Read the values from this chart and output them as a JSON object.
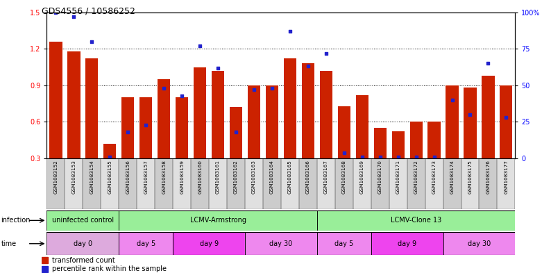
{
  "title": "GDS4556 / 10586252",
  "samples": [
    "GSM1083152",
    "GSM1083153",
    "GSM1083154",
    "GSM1083155",
    "GSM1083156",
    "GSM1083157",
    "GSM1083158",
    "GSM1083159",
    "GSM1083160",
    "GSM1083161",
    "GSM1083162",
    "GSM1083163",
    "GSM1083164",
    "GSM1083165",
    "GSM1083166",
    "GSM1083167",
    "GSM1083168",
    "GSM1083169",
    "GSM1083170",
    "GSM1083171",
    "GSM1083172",
    "GSM1083173",
    "GSM1083174",
    "GSM1083175",
    "GSM1083176",
    "GSM1083177"
  ],
  "red_values": [
    1.26,
    1.18,
    1.12,
    0.42,
    0.8,
    0.8,
    0.95,
    0.8,
    1.05,
    1.02,
    0.72,
    0.9,
    0.9,
    1.12,
    1.08,
    1.02,
    0.73,
    0.82,
    0.55,
    0.52,
    0.6,
    0.6,
    0.9,
    0.88,
    0.98,
    0.9
  ],
  "blue_percentiles": [
    100,
    97,
    80,
    1,
    18,
    23,
    48,
    43,
    77,
    62,
    18,
    47,
    48,
    87,
    63,
    72,
    4,
    1,
    1,
    1,
    1,
    1,
    40,
    30,
    65,
    28
  ],
  "ymin": 0.3,
  "ymax": 1.5,
  "yticks_left": [
    0.3,
    0.6,
    0.9,
    1.2,
    1.5
  ],
  "yticks_right": [
    0,
    25,
    50,
    75,
    100
  ],
  "ytick_labels_right": [
    "0",
    "25",
    "50",
    "75",
    "100%"
  ],
  "bar_color": "#cc2200",
  "dot_color": "#2222cc",
  "infection_regions": [
    {
      "text": "uninfected control",
      "start": 0,
      "end": 3,
      "color": "#99ee99"
    },
    {
      "text": "LCMV-Armstrong",
      "start": 4,
      "end": 14,
      "color": "#99ee99"
    },
    {
      "text": "LCMV-Clone 13",
      "start": 15,
      "end": 25,
      "color": "#99ee99"
    }
  ],
  "time_regions": [
    {
      "text": "day 0",
      "start": 0,
      "end": 3,
      "color": "#ddaadd"
    },
    {
      "text": "day 5",
      "start": 4,
      "end": 6,
      "color": "#ee88ee"
    },
    {
      "text": "day 9",
      "start": 7,
      "end": 10,
      "color": "#ee44ee"
    },
    {
      "text": "day 30",
      "start": 11,
      "end": 14,
      "color": "#ee88ee"
    },
    {
      "text": "day 5",
      "start": 15,
      "end": 17,
      "color": "#ee88ee"
    },
    {
      "text": "day 9",
      "start": 18,
      "end": 21,
      "color": "#ee44ee"
    },
    {
      "text": "day 30",
      "start": 22,
      "end": 25,
      "color": "#ee88ee"
    }
  ]
}
